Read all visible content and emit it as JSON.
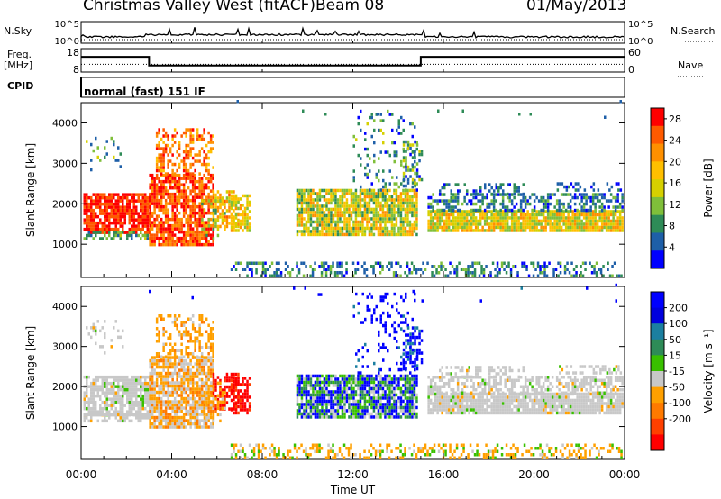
{
  "header": {
    "station": "Christmas Valley West (fitACF)",
    "beam": "Beam 08",
    "date": "01/May/2013"
  },
  "left_labels": {
    "nsky": "N.Sky",
    "freq": "Freq.",
    "freq_unit": "[MHz]",
    "cpid": "CPID",
    "cpid_value": "normal (fast) 151 IF"
  },
  "right_labels": {
    "nsearch": "N.Search",
    "nave": "Nave"
  },
  "chart_data": [
    {
      "type": "line",
      "panel": "noise",
      "left_axis_ticks": [
        "10^5",
        "10^0"
      ],
      "right_axis_ticks": [
        "10^5",
        "10^0"
      ],
      "series": [
        {
          "name": "N.Sky",
          "description_level": "flat near 10^1 with spikes"
        },
        {
          "name": "N.Search",
          "style": "dotted"
        }
      ]
    },
    {
      "type": "line",
      "panel": "frequency",
      "left_axis_ticks": [
        "18",
        "8"
      ],
      "right_axis_ticks": [
        "60",
        "0"
      ],
      "freq_steps": [
        {
          "from_ut": "00:00",
          "to_ut": "03:00",
          "mhz": 14.5
        },
        {
          "from_ut": "03:00",
          "to_ut": "15:00",
          "mhz": 10.8
        },
        {
          "from_ut": "15:00",
          "to_ut": "24:00",
          "mhz": 14.5
        }
      ],
      "nave_level": 20
    },
    {
      "type": "heatmap",
      "panel": "power",
      "ylabel": "Slant Range [km]",
      "yticks": [
        "4000",
        "3000",
        "2000",
        "1000"
      ],
      "ylim": [
        180,
        4500
      ],
      "colorbar_label": "Power [dB]",
      "colorbar_ticks": [
        "28",
        "24",
        "20",
        "16",
        "12",
        "8",
        "4"
      ],
      "colorbar_colors": [
        "#ff0000",
        "#ff5a00",
        "#ff9000",
        "#ffbf00",
        "#d6d000",
        "#7fbf3a",
        "#2e8b57",
        "#1e5fa8",
        "#0000ff"
      ],
      "colorbar_range": [
        0,
        30
      ]
    },
    {
      "type": "heatmap",
      "panel": "velocity",
      "ylabel": "Slant Range [km]",
      "yticks": [
        "4000",
        "3000",
        "2000",
        "1000"
      ],
      "ylim": [
        180,
        4500
      ],
      "colorbar_label": "Velocity [m s⁻¹]",
      "colorbar_ticks": [
        "200",
        "100",
        "50",
        "15",
        "-15",
        "-50",
        "-100",
        "-200"
      ],
      "colorbar_colors": [
        "#0000ff",
        "#0000dd",
        "#1b7fa0",
        "#2e8b57",
        "#39c000",
        "#c8c8c8",
        "#ffa000",
        "#ff7a00",
        "#ff4000",
        "#ff0000"
      ],
      "colorbar_range": [
        -250,
        250
      ]
    }
  ],
  "time_axis": {
    "xlabel": "Time UT",
    "ticks": [
      "00:00",
      "04:00",
      "08:00",
      "12:00",
      "16:00",
      "20:00",
      "00:00"
    ],
    "xlim_hours": [
      0,
      24
    ]
  }
}
